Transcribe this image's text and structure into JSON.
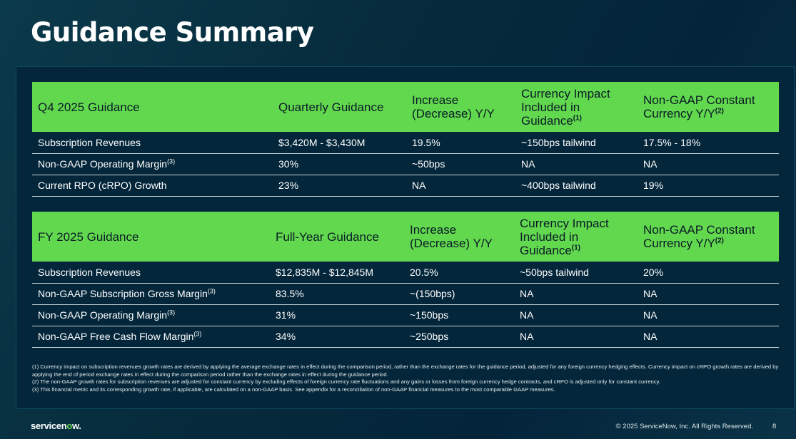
{
  "title": "Guidance Summary",
  "q4": {
    "headers": [
      "Q4 2025 Guidance",
      "Quarterly Guidance",
      "Increase (Decrease) Y/Y",
      "Currency Impact Included in Guidance",
      "Non-GAAP Constant Currency Y/Y"
    ],
    "header_notes": {
      "currency": "(1)",
      "constant": "(2)"
    },
    "rows": [
      {
        "label": "Subscription Revenues",
        "note": "",
        "guidance": "$3,420M - $3,430M",
        "change": "19.5%",
        "currency": "~150bps tailwind",
        "constant": "17.5% - 18%"
      },
      {
        "label": "Non-GAAP Operating Margin",
        "note": "(3)",
        "guidance": "30%",
        "change": "~50bps",
        "currency": "NA",
        "constant": "NA"
      },
      {
        "label": "Current RPO (cRPO) Growth",
        "note": "",
        "guidance": "23%",
        "change": "NA",
        "currency": "~400bps tailwind",
        "constant": "19%"
      }
    ]
  },
  "fy": {
    "headers": [
      "FY 2025 Guidance",
      "Full-Year Guidance",
      "Increase (Decrease) Y/Y",
      "Currency Impact Included in Guidance",
      "Non-GAAP Constant Currency Y/Y"
    ],
    "header_notes": {
      "currency": "(1)",
      "constant": "(2)"
    },
    "rows": [
      {
        "label": "Subscription Revenues",
        "note": "",
        "guidance": "$12,835M - $12,845M",
        "change": "20.5%",
        "currency": "~50bps tailwind",
        "constant": "20%"
      },
      {
        "label": "Non-GAAP Subscription Gross Margin",
        "note": "(3)",
        "guidance": "83.5%",
        "change": "~(150bps)",
        "currency": "NA",
        "constant": "NA"
      },
      {
        "label": "Non-GAAP Operating Margin",
        "note": "(3)",
        "guidance": "31%",
        "change": "~150bps",
        "currency": "NA",
        "constant": "NA"
      },
      {
        "label": "Non-GAAP Free Cash Flow Margin",
        "note": "(3)",
        "guidance": "34%",
        "change": "~250bps",
        "currency": "NA",
        "constant": "NA"
      }
    ]
  },
  "footnotes": [
    "(1) Currency impact on subscription revenues growth rates are derived by applying the average exchange rates in effect during the comparison period, rather than the exchange rates for the guidance period, adjusted for any foreign currency hedging effects. Currency impact on cRPO growth rates are derived by applying the end of period exchange rates in effect during the comparison period rather than the exchange rates in effect during the guidance period.",
    "(2) The non-GAAP growth rates for subscription revenues are adjusted for constant currency by excluding effects of foreign currency rate fluctuations and any gains or losses from foreign currency hedge contracts, and cRPO is adjusted only for constant currency.",
    "(3) This financial metric and its corresponding growth rate, if applicable, are calculated on a non-GAAP basis. See appendix for a reconciliation of non-GAAP financial measures to the most comparable GAAP measures."
  ],
  "footer": {
    "logo_pre": "servicen",
    "logo_o": "o",
    "logo_post": "w.",
    "copyright": "© 2025 ServiceNow, Inc. All Rights Reserved.",
    "page": "8"
  }
}
